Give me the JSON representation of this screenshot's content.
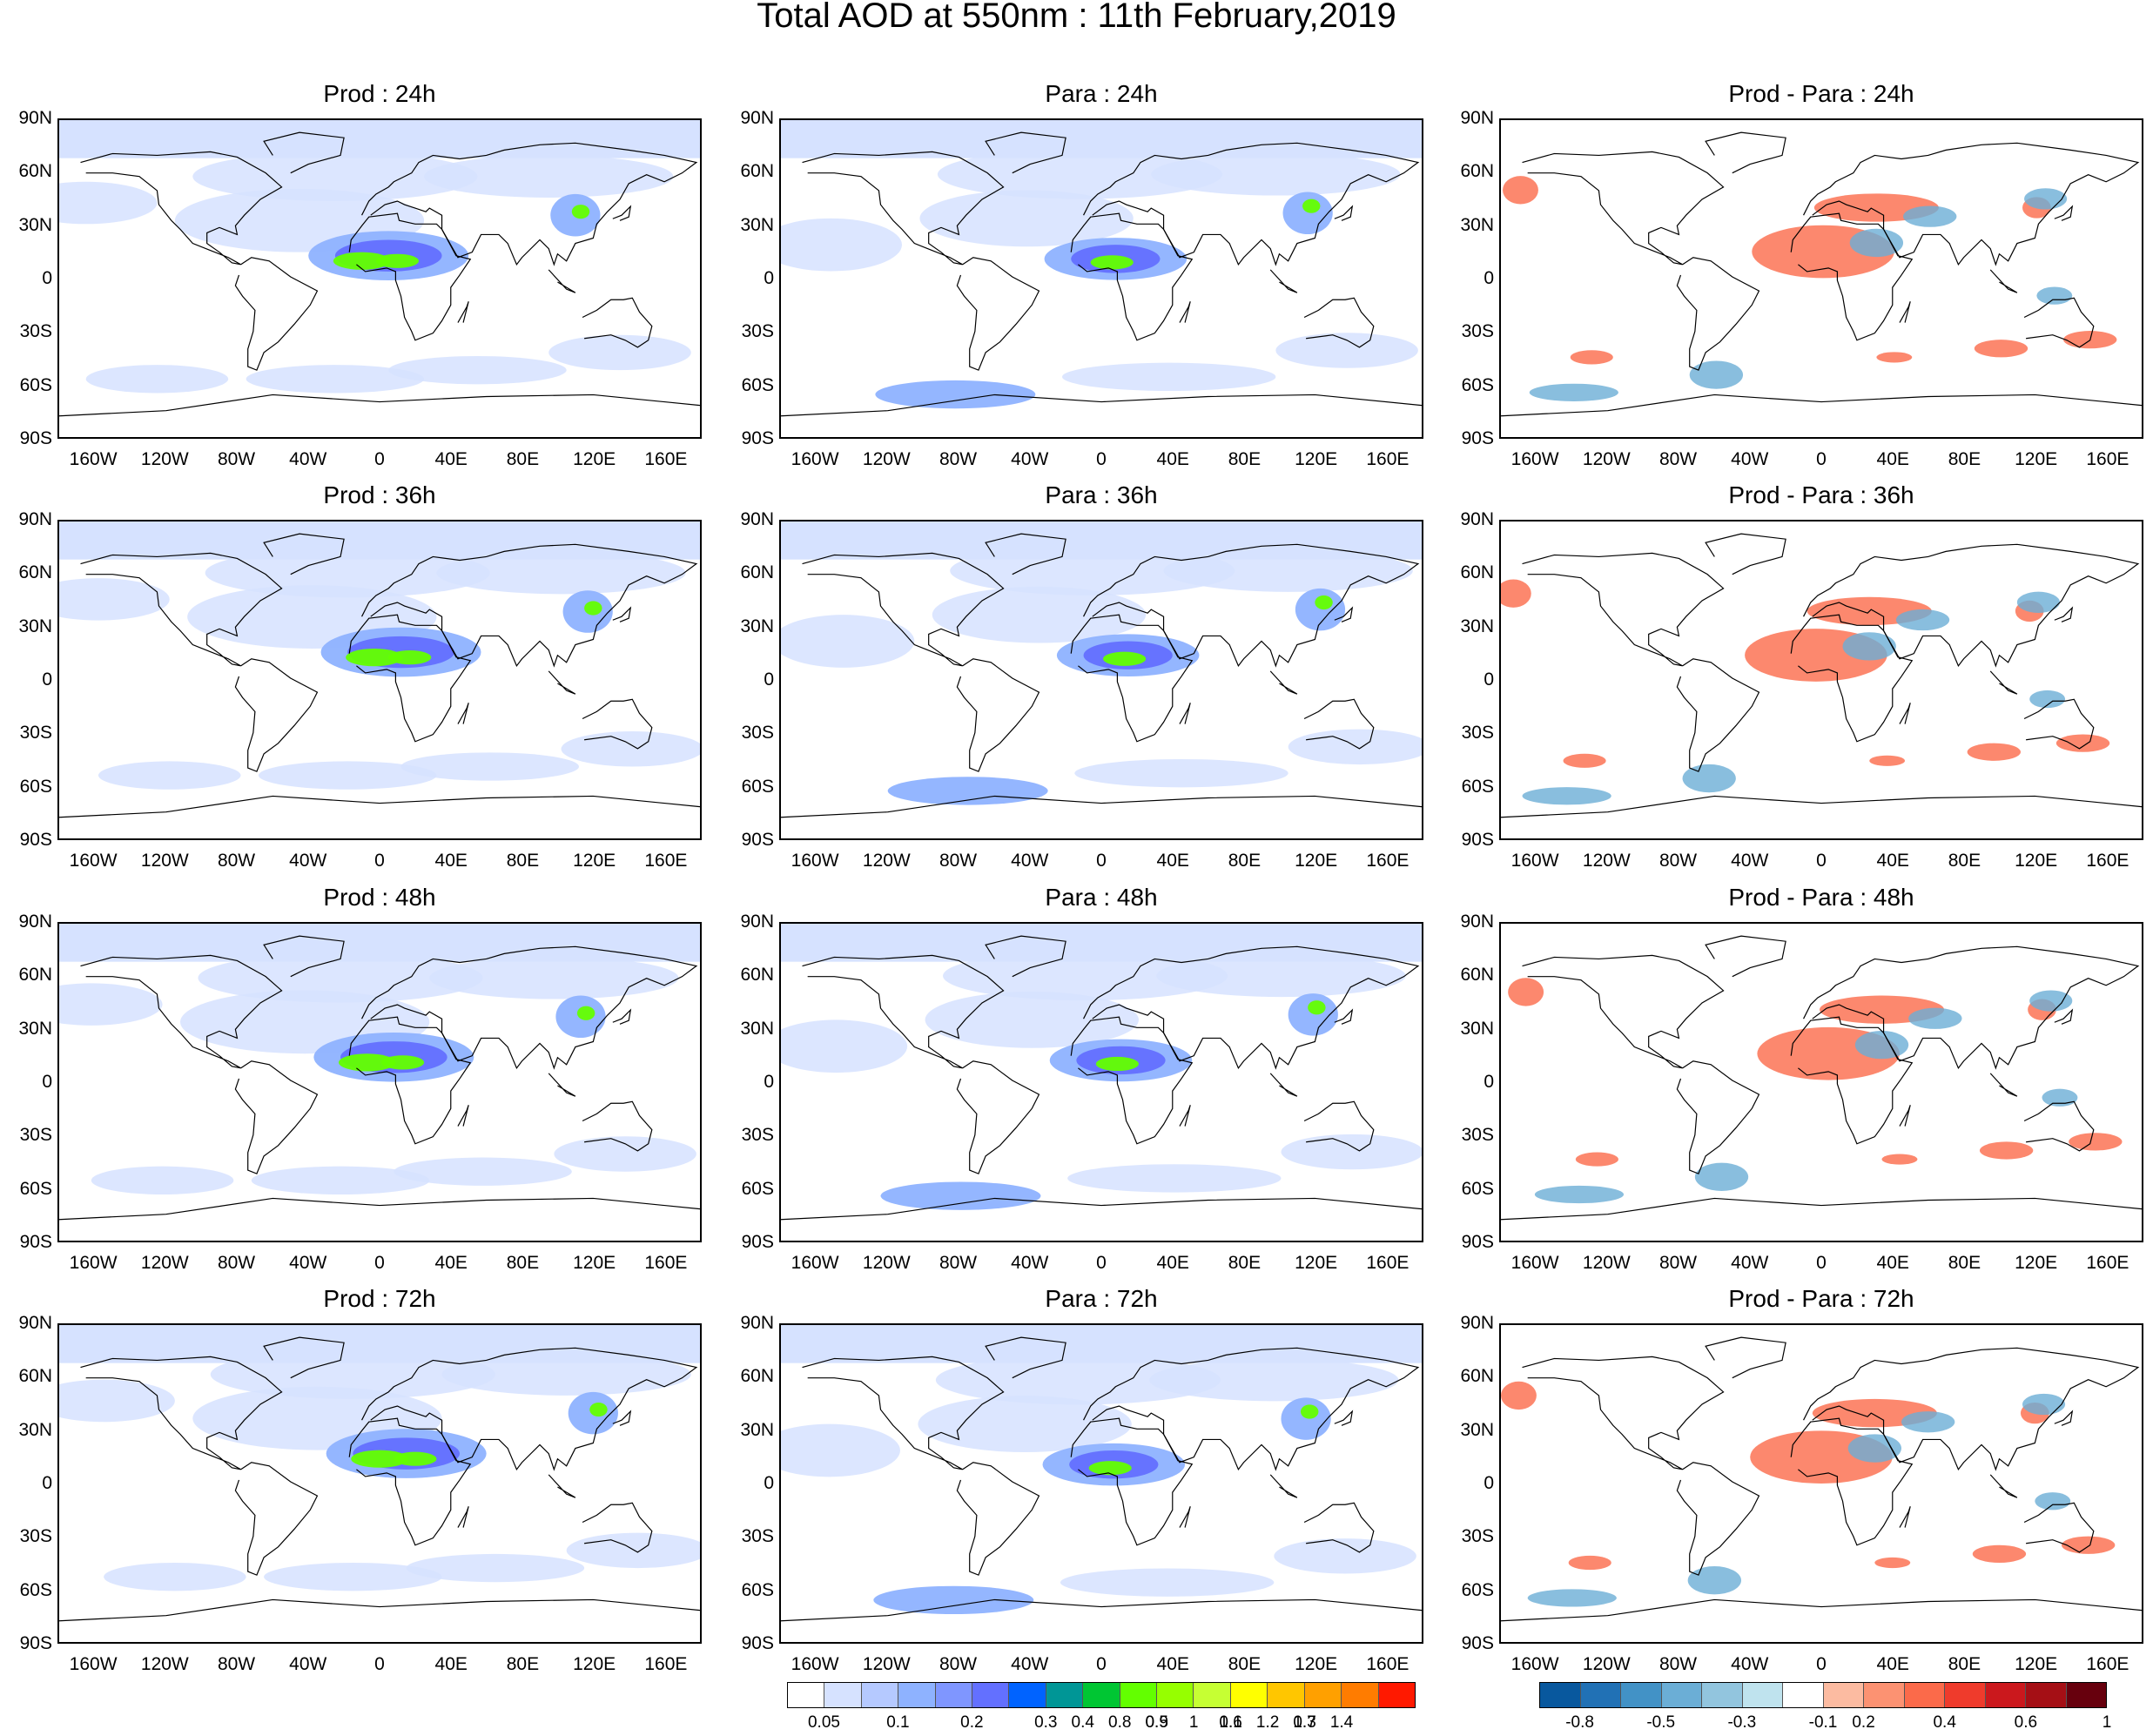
{
  "title": "Total AOD at 550nm : 11th February,2019",
  "columns": [
    "Prod",
    "Para",
    "Prod - Para"
  ],
  "rows": [
    "24h",
    "36h",
    "48h",
    "72h"
  ],
  "panel_titles": [
    [
      "Prod : 24h",
      "Para : 24h",
      "Prod - Para : 24h"
    ],
    [
      "Prod : 36h",
      "Para : 36h",
      "Prod - Para : 36h"
    ],
    [
      "Prod : 48h",
      "Para : 48h",
      "Prod - Para : 48h"
    ],
    [
      "Prod : 72h",
      "Para : 72h",
      "Prod - Para : 72h"
    ]
  ],
  "lat_labels": [
    "90N",
    "60N",
    "30N",
    "0",
    "30S",
    "60S",
    "90S"
  ],
  "lon_labels": [
    "160W",
    "120W",
    "80W",
    "40W",
    "0",
    "40E",
    "80E",
    "120E",
    "160E"
  ],
  "aod_colorbar": {
    "labels": [
      "0.05",
      "0.1",
      "0.2",
      "0.3",
      "0.4",
      "0.5",
      "0.6",
      "0.7",
      "0.8",
      "0.9",
      "1",
      "1.1",
      "1.2",
      "1.3",
      "1.4"
    ],
    "colors": [
      "#ffffff",
      "#d6e2ff",
      "#b5c9ff",
      "#8eb2ff",
      "#7f96ff",
      "#6370ff",
      "#0063ff",
      "#009696",
      "#00c633",
      "#63ff00",
      "#96ff00",
      "#c6ff33",
      "#ffff00",
      "#ffc600",
      "#ffa000",
      "#ff7c00",
      "#ff1900"
    ]
  },
  "diff_colorbar": {
    "labels": [
      "-0.8",
      "-0.5",
      "-0.3",
      "-0.1",
      "0.2",
      "0.4",
      "0.6",
      "1"
    ],
    "colors": [
      "#08589e",
      "#2171b5",
      "#4292c6",
      "#6baed6",
      "#92c5de",
      "#bfe3ee",
      "#ffffff",
      "#fcbba1",
      "#fc9272",
      "#fb6a4a",
      "#ef3b2c",
      "#cb181d",
      "#a50f15",
      "#67000d"
    ]
  },
  "colors": {
    "aod_light": "#d6e2ff",
    "aod_mid": "#8eb2ff",
    "aod_dark": "#6370ff",
    "aod_green": "#63ff00",
    "diff_red": "#fb6a4a",
    "diff_blue": "#6baed6",
    "coast": "#000000"
  }
}
